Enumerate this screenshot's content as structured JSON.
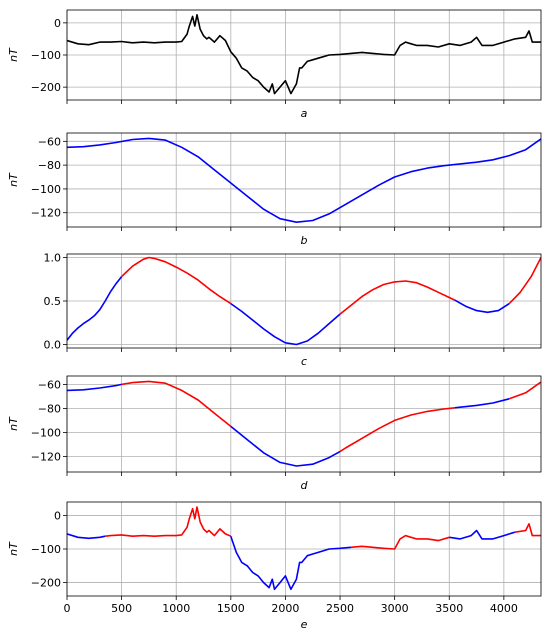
{
  "chart_data": [
    {
      "id": "a",
      "type": "line",
      "xlabel": "a",
      "ylabel": "nT",
      "xlim": [
        0,
        4340
      ],
      "ylim": [
        -240,
        40
      ],
      "yticks": [
        0,
        -100,
        -200
      ],
      "xticks": [
        0,
        500,
        1000,
        1500,
        2000,
        2500,
        3000,
        3500,
        4000
      ],
      "show_x_tick_labels": false,
      "grid": true,
      "series": [
        {
          "color": "#000000",
          "x": [
            0,
            100,
            200,
            300,
            400,
            500,
            600,
            700,
            800,
            900,
            1000,
            1050,
            1100,
            1120,
            1150,
            1170,
            1190,
            1220,
            1250,
            1280,
            1300,
            1350,
            1400,
            1450,
            1500,
            1550,
            1600,
            1650,
            1700,
            1750,
            1800,
            1850,
            1880,
            1900,
            1950,
            2000,
            2050,
            2100,
            2130,
            2150,
            2200,
            2250,
            2300,
            2400,
            2500,
            2600,
            2700,
            2800,
            2900,
            3000,
            3050,
            3100,
            3150,
            3200,
            3300,
            3400,
            3500,
            3600,
            3700,
            3750,
            3800,
            3900,
            4000,
            4100,
            4200,
            4230,
            4260,
            4300,
            4340
          ],
          "values": [
            -55,
            -65,
            -68,
            -60,
            -60,
            -58,
            -62,
            -60,
            -62,
            -60,
            -60,
            -58,
            -35,
            -10,
            20,
            -10,
            25,
            -20,
            -40,
            -50,
            -45,
            -60,
            -40,
            -55,
            -90,
            -110,
            -140,
            -150,
            -170,
            -180,
            -200,
            -215,
            -190,
            -220,
            -200,
            -180,
            -220,
            -190,
            -140,
            -140,
            -120,
            -115,
            -110,
            -100,
            -98,
            -95,
            -92,
            -95,
            -98,
            -100,
            -70,
            -60,
            -65,
            -70,
            -70,
            -75,
            -65,
            -70,
            -60,
            -45,
            -70,
            -70,
            -60,
            -50,
            -45,
            -25,
            -60,
            -60,
            -60
          ]
        }
      ]
    },
    {
      "id": "b",
      "type": "line",
      "xlabel": "b",
      "ylabel": "nT",
      "xlim": [
        0,
        4340
      ],
      "ylim": [
        -132,
        -53
      ],
      "yticks": [
        -60,
        -80,
        -100,
        -120
      ],
      "xticks": [
        0,
        500,
        1000,
        1500,
        2000,
        2500,
        3000,
        3500,
        4000
      ],
      "show_x_tick_labels": false,
      "grid": true,
      "series": [
        {
          "color": "#0000ff",
          "x": [
            0,
            150,
            300,
            450,
            600,
            750,
            900,
            1050,
            1200,
            1350,
            1500,
            1650,
            1800,
            1950,
            2100,
            2250,
            2400,
            2550,
            2700,
            2850,
            3000,
            3150,
            3300,
            3450,
            3600,
            3750,
            3900,
            4050,
            4200,
            4340
          ],
          "values": [
            -65,
            -64.5,
            -63,
            -61,
            -58.5,
            -57.5,
            -59,
            -65,
            -73,
            -84,
            -95,
            -106,
            -117,
            -125,
            -128,
            -126.5,
            -121,
            -113,
            -105,
            -97,
            -90,
            -85.5,
            -82.5,
            -80.5,
            -79,
            -77.5,
            -75.5,
            -72,
            -67,
            -58
          ]
        }
      ]
    },
    {
      "id": "c",
      "type": "line",
      "xlabel": "c",
      "ylabel": "",
      "xlim": [
        0,
        4340
      ],
      "ylim": [
        -0.04,
        1.04
      ],
      "yticks": [
        1.0,
        0.5,
        0.0
      ],
      "ytick_labels": [
        "1.0",
        "0.5",
        "0.0"
      ],
      "xticks": [
        0,
        500,
        1000,
        1500,
        2000,
        2500,
        3000,
        3500,
        4000
      ],
      "show_x_tick_labels": false,
      "grid": true,
      "series": [
        {
          "color": "#0000ff",
          "x": [
            0,
            50,
            100,
            150,
            200,
            250,
            300,
            350,
            400,
            450,
            500
          ],
          "values": [
            0.05,
            0.13,
            0.19,
            0.24,
            0.28,
            0.33,
            0.4,
            0.5,
            0.61,
            0.7,
            0.78
          ]
        },
        {
          "color": "#ff0000",
          "x": [
            500,
            600,
            700,
            750,
            800,
            900,
            1000,
            1100,
            1200,
            1300,
            1400,
            1500
          ],
          "values": [
            0.78,
            0.9,
            0.98,
            1.0,
            0.99,
            0.95,
            0.89,
            0.82,
            0.74,
            0.64,
            0.55,
            0.47
          ]
        },
        {
          "color": "#0000ff",
          "x": [
            1500,
            1600,
            1700,
            1800,
            1900,
            2000,
            2100,
            2200,
            2300,
            2400,
            2500
          ],
          "values": [
            0.47,
            0.38,
            0.28,
            0.18,
            0.09,
            0.02,
            0.0,
            0.04,
            0.13,
            0.24,
            0.35
          ]
        },
        {
          "color": "#ff0000",
          "x": [
            2500,
            2600,
            2700,
            2800,
            2900,
            3000,
            3100,
            3200,
            3300,
            3400,
            3500,
            3550
          ],
          "values": [
            0.35,
            0.45,
            0.55,
            0.63,
            0.69,
            0.72,
            0.73,
            0.71,
            0.66,
            0.6,
            0.54,
            0.51
          ]
        },
        {
          "color": "#0000ff",
          "x": [
            3550,
            3650,
            3750,
            3850,
            3950,
            4050
          ],
          "values": [
            0.51,
            0.44,
            0.39,
            0.37,
            0.39,
            0.47
          ]
        },
        {
          "color": "#ff0000",
          "x": [
            4050,
            4150,
            4250,
            4340
          ],
          "values": [
            0.47,
            0.6,
            0.78,
            1.0
          ]
        }
      ]
    },
    {
      "id": "d",
      "type": "line",
      "xlabel": "d",
      "ylabel": "nT",
      "xlim": [
        0,
        4340
      ],
      "ylim": [
        -133,
        -53
      ],
      "yticks": [
        -60,
        -80,
        -100,
        -120
      ],
      "xticks": [
        0,
        500,
        1000,
        1500,
        2000,
        2500,
        3000,
        3500,
        4000
      ],
      "show_x_tick_labels": false,
      "grid": true,
      "series": [
        {
          "color": "#0000ff",
          "x": [
            0,
            150,
            300,
            450,
            500
          ],
          "values": [
            -65,
            -64.5,
            -63,
            -61,
            -60
          ]
        },
        {
          "color": "#ff0000",
          "x": [
            500,
            600,
            750,
            900,
            1050,
            1200,
            1350,
            1500
          ],
          "values": [
            -60,
            -58.5,
            -57.5,
            -59,
            -65,
            -73,
            -84,
            -95
          ]
        },
        {
          "color": "#0000ff",
          "x": [
            1500,
            1650,
            1800,
            1950,
            2100,
            2250,
            2400,
            2500
          ],
          "values": [
            -95,
            -106,
            -117,
            -125,
            -128,
            -126.5,
            -121,
            -116
          ]
        },
        {
          "color": "#ff0000",
          "x": [
            2500,
            2550,
            2700,
            2850,
            3000,
            3150,
            3300,
            3450,
            3550
          ],
          "values": [
            -116,
            -113,
            -105,
            -97,
            -90,
            -85.5,
            -82.5,
            -80.5,
            -79.5
          ]
        },
        {
          "color": "#0000ff",
          "x": [
            3550,
            3600,
            3750,
            3900,
            4050
          ],
          "values": [
            -79.5,
            -79,
            -77.5,
            -75.5,
            -72
          ]
        },
        {
          "color": "#ff0000",
          "x": [
            4050,
            4200,
            4340
          ],
          "values": [
            -72,
            -67,
            -58
          ]
        }
      ]
    },
    {
      "id": "e",
      "type": "line",
      "xlabel": "e",
      "ylabel": "nT",
      "xlim": [
        0,
        4340
      ],
      "ylim": [
        -240,
        40
      ],
      "yticks": [
        0,
        -100,
        -200
      ],
      "xticks": [
        0,
        500,
        1000,
        1500,
        2000,
        2500,
        3000,
        3500,
        4000
      ],
      "xtick_labels": [
        "0",
        "500",
        "1000",
        "1500",
        "2000",
        "2500",
        "3000",
        "3500",
        "4000"
      ],
      "show_x_tick_labels": true,
      "grid": true,
      "series": [
        {
          "color": "#0000ff",
          "x": [
            0,
            100,
            200,
            300,
            350
          ],
          "values": [
            -55,
            -65,
            -68,
            -65,
            -62
          ]
        },
        {
          "color": "#ff0000",
          "x": [
            350,
            400,
            500,
            600,
            700,
            800,
            900,
            1000,
            1050,
            1100,
            1120,
            1150,
            1170,
            1190,
            1220,
            1250,
            1280,
            1300,
            1350,
            1400,
            1450,
            1500
          ],
          "values": [
            -62,
            -60,
            -58,
            -62,
            -60,
            -62,
            -60,
            -60,
            -58,
            -35,
            -10,
            20,
            -10,
            25,
            -20,
            -40,
            -50,
            -45,
            -60,
            -40,
            -55,
            -62
          ]
        },
        {
          "color": "#0000ff",
          "x": [
            1500,
            1550,
            1600,
            1650,
            1700,
            1750,
            1800,
            1850,
            1880,
            1900,
            1950,
            2000,
            2050,
            2100,
            2130,
            2150,
            2200,
            2250,
            2300,
            2400,
            2500,
            2600
          ],
          "values": [
            -62,
            -110,
            -140,
            -150,
            -170,
            -180,
            -200,
            -215,
            -190,
            -220,
            -200,
            -180,
            -220,
            -190,
            -140,
            -140,
            -120,
            -115,
            -110,
            -100,
            -98,
            -95
          ]
        },
        {
          "color": "#ff0000",
          "x": [
            2600,
            2700,
            2800,
            2900,
            3000,
            3050,
            3100,
            3150,
            3200,
            3300,
            3400,
            3500
          ],
          "values": [
            -95,
            -92,
            -95,
            -98,
            -100,
            -70,
            -60,
            -65,
            -70,
            -70,
            -75,
            -65
          ]
        },
        {
          "color": "#0000ff",
          "x": [
            3500,
            3600,
            3700,
            3750,
            3800,
            3900,
            4000,
            4100
          ],
          "values": [
            -65,
            -70,
            -60,
            -45,
            -70,
            -70,
            -60,
            -50
          ]
        },
        {
          "color": "#ff0000",
          "x": [
            4100,
            4200,
            4230,
            4260,
            4300,
            4340
          ],
          "values": [
            -50,
            -45,
            -25,
            -60,
            -60,
            -60
          ]
        }
      ]
    }
  ]
}
